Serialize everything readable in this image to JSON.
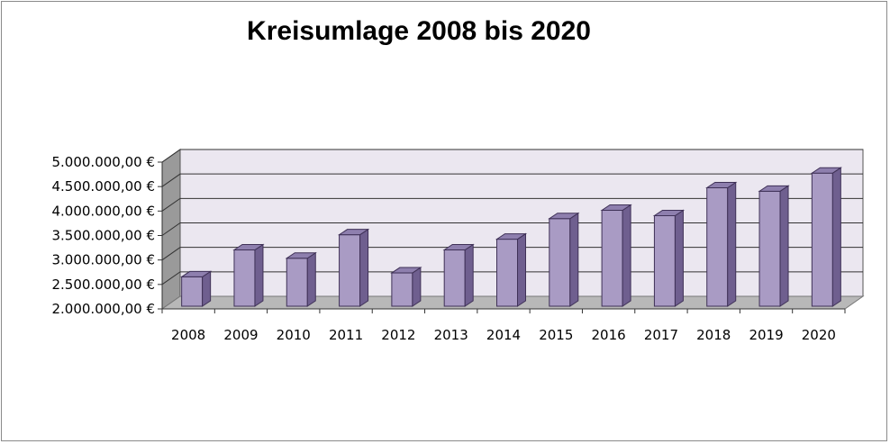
{
  "chart_data": {
    "type": "bar",
    "title": "Kreisumlage 2008 bis 2020",
    "categories": [
      "2008",
      "2009",
      "2010",
      "2011",
      "2012",
      "2013",
      "2014",
      "2015",
      "2016",
      "2017",
      "2018",
      "2019",
      "2020"
    ],
    "values": [
      2600000,
      3150000,
      2980000,
      3460000,
      2680000,
      3150000,
      3370000,
      3790000,
      3960000,
      3850000,
      4420000,
      4350000,
      4720000
    ],
    "ylim": [
      2000000,
      5000000
    ],
    "yticks": [
      {
        "value": 2000000,
        "label": "2.000.000,00 €"
      },
      {
        "value": 2500000,
        "label": "2.500.000,00 €"
      },
      {
        "value": 3000000,
        "label": "3.000.000,00 €"
      },
      {
        "value": 3500000,
        "label": "3.500.000,00 €"
      },
      {
        "value": 4000000,
        "label": "4.000.000,00 €"
      },
      {
        "value": 4500000,
        "label": "4.500.000,00 €"
      },
      {
        "value": 5000000,
        "label": "5.000.000,00 €"
      }
    ],
    "grid": true,
    "legend": "none",
    "colors": {
      "bar_front": "#a99bc4",
      "bar_side": "#6f5f8f",
      "bar_top": "#8e7fae",
      "bar_edge": "#3f3157",
      "wall": "#ebe7f0",
      "floor": "#b8b8b8",
      "side_wall": "#9a9a9a"
    }
  }
}
